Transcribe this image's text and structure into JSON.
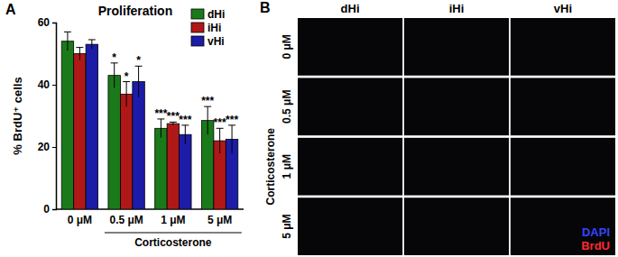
{
  "chart_data": {
    "type": "bar",
    "panel_label": "A",
    "title": "Proliferation",
    "y_label": "% BrdU⁺ cells",
    "x_label": "Corticosterone",
    "categories": [
      "0 μM",
      "0.5 μM",
      "1 μM",
      "5 μM"
    ],
    "series": [
      {
        "name": "dHi",
        "color": "#1a7a1a",
        "values": [
          54,
          43,
          26,
          28.5
        ],
        "errors": [
          3,
          4,
          3,
          4.5
        ],
        "annotations": [
          null,
          "*",
          "***",
          "***"
        ]
      },
      {
        "name": "iHi",
        "color": "#b01818",
        "values": [
          50,
          37,
          27.5,
          22
        ],
        "errors": [
          2,
          4,
          0.5,
          4
        ],
        "annotations": [
          null,
          "*",
          "***",
          "***"
        ]
      },
      {
        "name": "vHi",
        "color": "#1c1ca8",
        "values": [
          53,
          41,
          24,
          22.5
        ],
        "errors": [
          1.5,
          5,
          3,
          4.5
        ],
        "annotations": [
          null,
          "*",
          "***",
          "***"
        ]
      }
    ],
    "ylim": [
      0,
      60
    ],
    "yticks": [
      0,
      20,
      40,
      60
    ],
    "grid": false,
    "legend": "top-right"
  },
  "image_panel": {
    "panel_label": "B",
    "columns": [
      "dHi",
      "iHi",
      "vHi"
    ],
    "rows": [
      "0 μM",
      "0.5 μM",
      "1 μM",
      "5 μM"
    ],
    "row_group_label": "Corticosterone",
    "channels": [
      {
        "name": "DAPI",
        "color": "#3344ff"
      },
      {
        "name": "BrdU",
        "color": "#ff2a2a"
      }
    ]
  }
}
